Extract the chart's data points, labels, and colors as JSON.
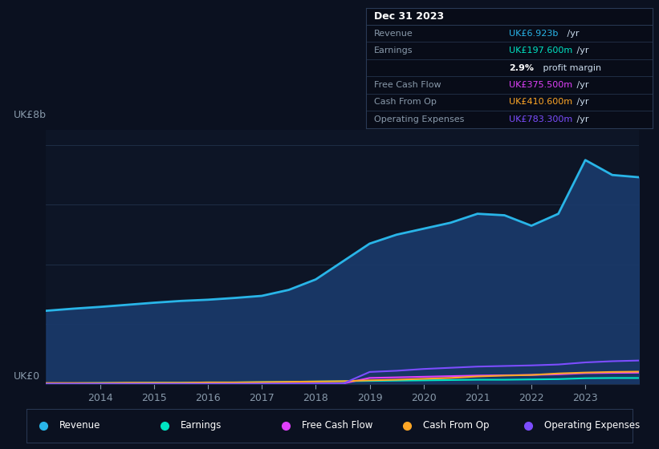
{
  "bg_color": "#0b1120",
  "plot_bg_color": "#0d1526",
  "grid_color": "#1e2d45",
  "years": [
    2013,
    2013.5,
    2014,
    2014.5,
    2015,
    2015.5,
    2016,
    2016.5,
    2017,
    2017.5,
    2018,
    2018.5,
    2019,
    2019.5,
    2020,
    2020.5,
    2021,
    2021.5,
    2022,
    2022.5,
    2023,
    2023.5,
    2024
  ],
  "revenue": [
    2.45,
    2.52,
    2.58,
    2.65,
    2.72,
    2.78,
    2.82,
    2.88,
    2.95,
    3.15,
    3.5,
    4.1,
    4.7,
    5.0,
    5.2,
    5.4,
    5.7,
    5.65,
    5.3,
    5.7,
    7.5,
    7.0,
    6.923
  ],
  "earnings": [
    0.02,
    0.02,
    0.03,
    0.03,
    0.04,
    0.04,
    0.05,
    0.05,
    0.06,
    0.07,
    0.08,
    0.09,
    0.1,
    0.11,
    0.12,
    0.13,
    0.14,
    0.14,
    0.15,
    0.16,
    0.19,
    0.198,
    0.1976
  ],
  "free_cash_flow": [
    0.01,
    0.01,
    0.01,
    0.01,
    0.01,
    0.01,
    0.01,
    0.01,
    0.01,
    0.01,
    0.01,
    0.01,
    0.2,
    0.22,
    0.24,
    0.26,
    0.28,
    0.29,
    0.3,
    0.32,
    0.36,
    0.37,
    0.3755
  ],
  "cash_from_op": [
    0.03,
    0.03,
    0.03,
    0.04,
    0.04,
    0.04,
    0.05,
    0.05,
    0.06,
    0.07,
    0.08,
    0.09,
    0.12,
    0.14,
    0.17,
    0.2,
    0.25,
    0.28,
    0.3,
    0.35,
    0.38,
    0.4,
    0.4106
  ],
  "operating_expenses": [
    0.005,
    0.005,
    0.005,
    0.005,
    0.005,
    0.005,
    0.005,
    0.005,
    0.005,
    0.005,
    0.005,
    0.005,
    0.4,
    0.44,
    0.5,
    0.54,
    0.58,
    0.6,
    0.62,
    0.65,
    0.72,
    0.76,
    0.7833
  ],
  "revenue_color": "#29b5e8",
  "earnings_color": "#00e5c3",
  "free_cash_flow_color": "#e040fb",
  "cash_from_op_color": "#ffa726",
  "operating_expenses_color": "#7c4dff",
  "revenue_fill": "#1a3a6b",
  "ylim": [
    0,
    8.5
  ],
  "xticks": [
    2014,
    2015,
    2016,
    2017,
    2018,
    2019,
    2020,
    2021,
    2022,
    2023
  ],
  "y_label_top": "UK£8b",
  "y_label_bottom": "UK£0",
  "info_box": {
    "title": "Dec 31 2023",
    "rows": [
      {
        "label": "Revenue",
        "value": "UK£6.923b",
        "value_color": "#29b5e8",
        "suffix": " /yr"
      },
      {
        "label": "Earnings",
        "value": "UK£197.600m",
        "value_color": "#00e5c3",
        "suffix": " /yr"
      },
      {
        "label": "",
        "value": "2.9%",
        "value_color": "#ffffff",
        "suffix": " profit margin",
        "bold_value": true
      },
      {
        "label": "Free Cash Flow",
        "value": "UK£375.500m",
        "value_color": "#e040fb",
        "suffix": " /yr"
      },
      {
        "label": "Cash From Op",
        "value": "UK£410.600m",
        "value_color": "#ffa726",
        "suffix": " /yr"
      },
      {
        "label": "Operating Expenses",
        "value": "UK£783.300m",
        "value_color": "#7c4dff",
        "suffix": " /yr"
      }
    ]
  },
  "legend": [
    {
      "label": "Revenue",
      "color": "#29b5e8"
    },
    {
      "label": "Earnings",
      "color": "#00e5c3"
    },
    {
      "label": "Free Cash Flow",
      "color": "#e040fb"
    },
    {
      "label": "Cash From Op",
      "color": "#ffa726"
    },
    {
      "label": "Operating Expenses",
      "color": "#7c4dff"
    }
  ]
}
